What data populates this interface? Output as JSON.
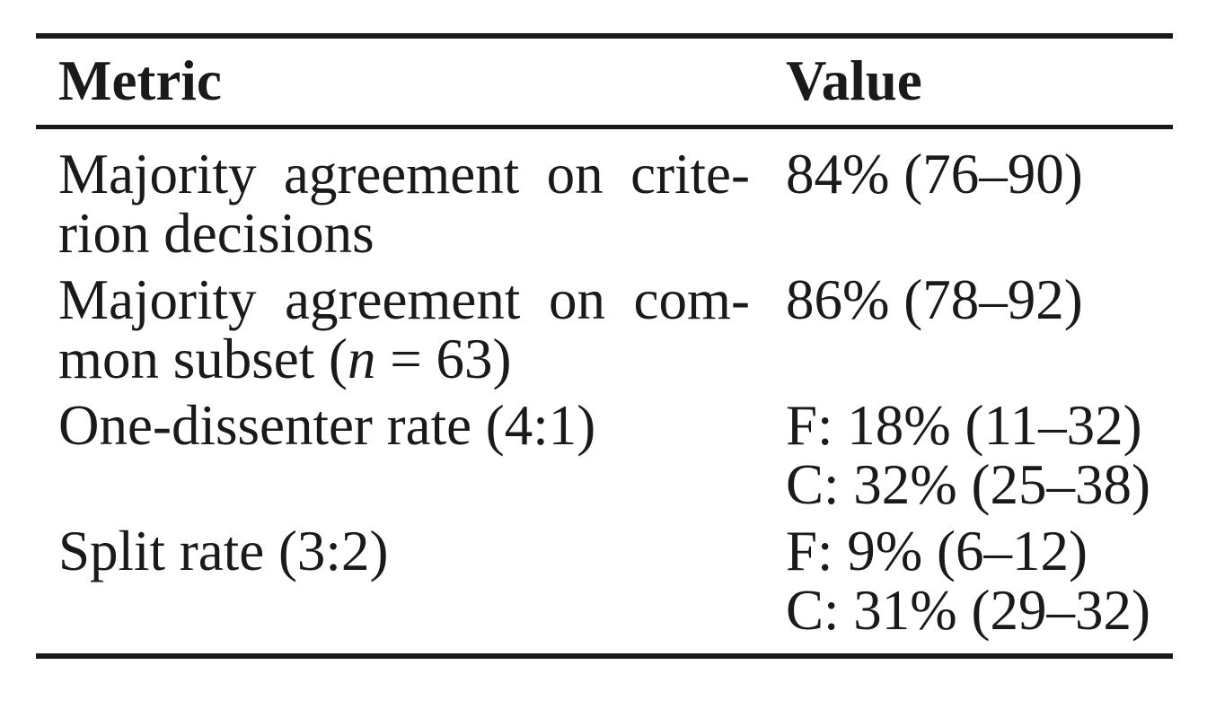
{
  "colors": {
    "ink": "#1a1a1a",
    "background": "#ffffff"
  },
  "table": {
    "columns": [
      "Metric",
      "Value"
    ],
    "rows": [
      {
        "metric": [
          "Majority agreement on crite-",
          "rion decisions"
        ],
        "metric_full": "Majority agreement on criterion decisions",
        "value": [
          "84% (76–90)"
        ]
      },
      {
        "metric": [
          "Majority agreement on com-",
          [
            "mon subset (",
            {
              "i": "n"
            },
            " = 63)"
          ]
        ],
        "metric_full": "Majority agreement on common subset (n = 63)",
        "value": [
          "86% (78–92)"
        ]
      },
      {
        "metric": [
          "One-dissenter rate (4:1)"
        ],
        "metric_full": "One-dissenter rate (4:1)",
        "value": [
          "F: 18% (11–32)",
          "C: 32% (25–38)"
        ]
      },
      {
        "metric": [
          "Split rate (3:2)"
        ],
        "metric_full": "Split rate (3:2)",
        "value": [
          "F: 9% (6–12)",
          "C: 31% (29–32)"
        ]
      }
    ]
  }
}
